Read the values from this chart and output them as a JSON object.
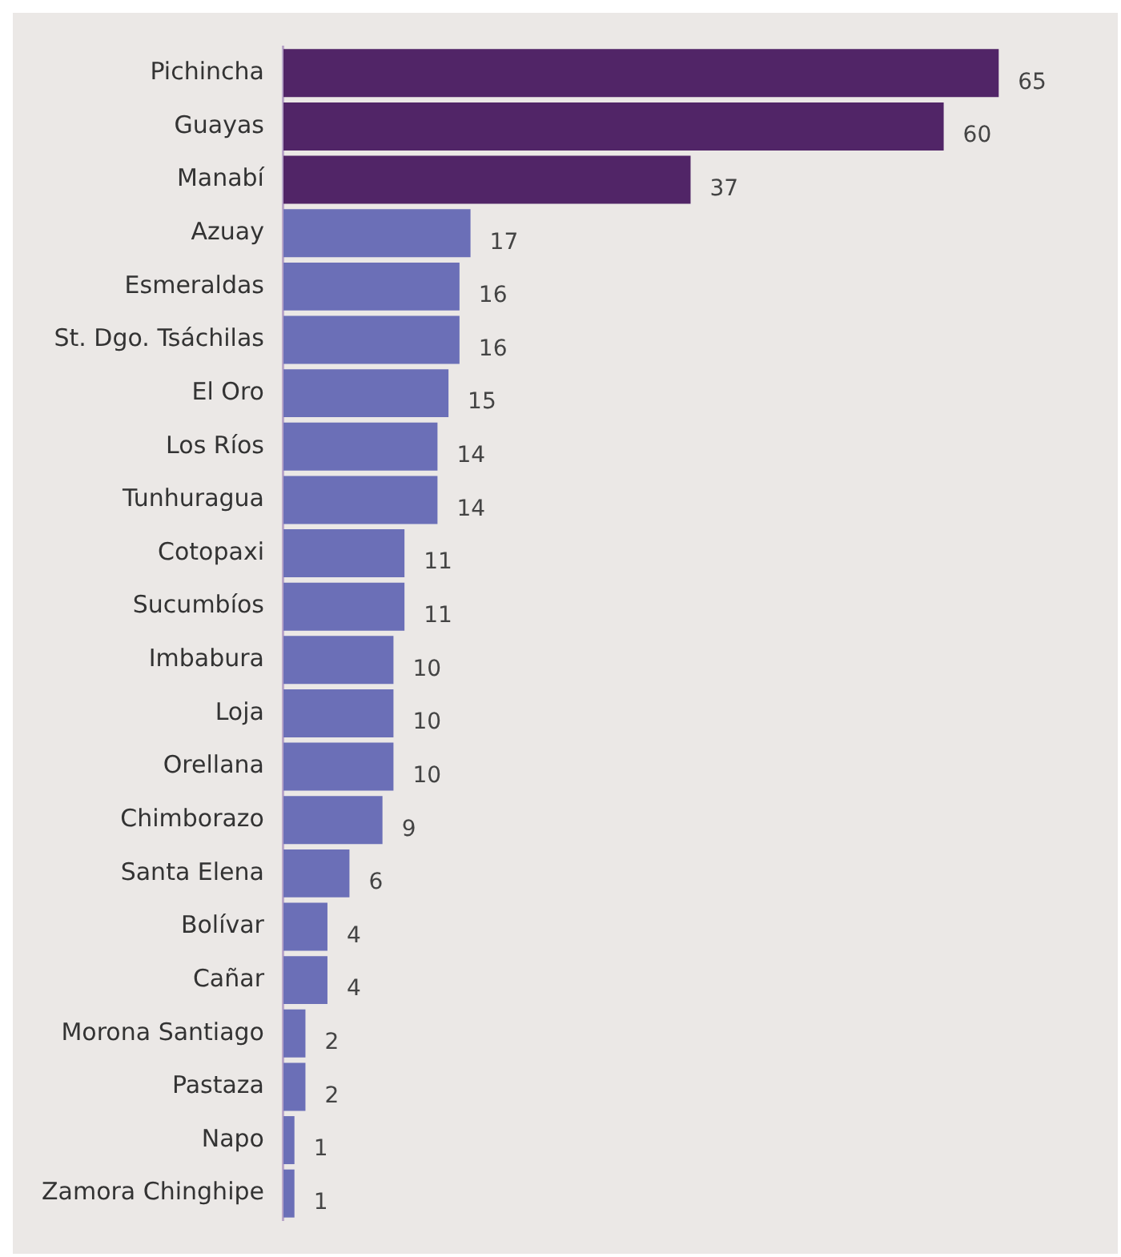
{
  "chart_data": {
    "type": "bar",
    "orientation": "horizontal",
    "categories": [
      "Pichincha",
      "Guayas",
      "Manabí",
      "Azuay",
      "Esmeraldas",
      "St. Dgo. Tsáchilas",
      "El Oro",
      "Los Ríos",
      "Tunhuragua",
      "Cotopaxi",
      "Sucumbíos",
      "Imbabura",
      "Loja",
      "Orellana",
      "Chimborazo",
      "Santa Elena",
      "Bolívar",
      "Cañar",
      "Morona Santiago",
      "Pastaza",
      "Napo",
      "Zamora Chinghipe"
    ],
    "values": [
      65,
      60,
      37,
      17,
      16,
      16,
      15,
      14,
      14,
      11,
      11,
      10,
      10,
      10,
      9,
      6,
      4,
      4,
      2,
      2,
      1,
      1
    ],
    "colors": [
      "#512567",
      "#512567",
      "#512567",
      "#6b6fb7",
      "#6b6fb7",
      "#6b6fb7",
      "#6b6fb7",
      "#6b6fb7",
      "#6b6fb7",
      "#6b6fb7",
      "#6b6fb7",
      "#6b6fb7",
      "#6b6fb7",
      "#6b6fb7",
      "#6b6fb7",
      "#6b6fb7",
      "#6b6fb7",
      "#6b6fb7",
      "#6b6fb7",
      "#6b6fb7",
      "#6b6fb7",
      "#6b6fb7"
    ],
    "data_labels": true,
    "tick_labels": "y",
    "grid": false,
    "legend": false
  }
}
